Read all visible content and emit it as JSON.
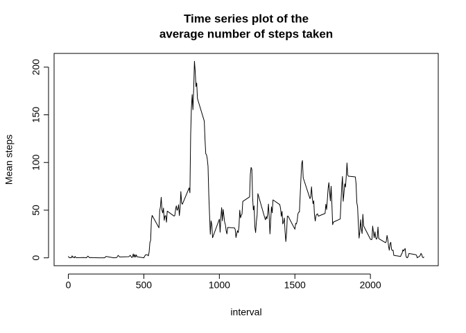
{
  "chart_data": {
    "type": "line",
    "title": [
      "Time series plot of the",
      "average number of steps taken"
    ],
    "x_label": "interval",
    "y_label": "Mean steps",
    "color": "#000000",
    "x": [
      0,
      5,
      10,
      15,
      20,
      25,
      30,
      35,
      40,
      45,
      50,
      55,
      100,
      110,
      120,
      125,
      130,
      140,
      150,
      200,
      220,
      240,
      250,
      300,
      320,
      330,
      340,
      400,
      410,
      420,
      425,
      430,
      435,
      440,
      445,
      450,
      455,
      500,
      510,
      520,
      525,
      530,
      535,
      540,
      545,
      550,
      555,
      600,
      605,
      610,
      615,
      620,
      625,
      630,
      635,
      640,
      645,
      650,
      655,
      700,
      705,
      710,
      715,
      720,
      725,
      730,
      735,
      740,
      745,
      750,
      755,
      800,
      805,
      810,
      815,
      820,
      825,
      830,
      835,
      840,
      845,
      850,
      855,
      900,
      905,
      910,
      915,
      920,
      925,
      930,
      935,
      940,
      945,
      950,
      955,
      1000,
      1005,
      1010,
      1015,
      1020,
      1025,
      1030,
      1035,
      1040,
      1045,
      1050,
      1055,
      1100,
      1105,
      1110,
      1115,
      1120,
      1125,
      1130,
      1135,
      1140,
      1145,
      1150,
      1155,
      1200,
      1205,
      1210,
      1215,
      1220,
      1225,
      1230,
      1235,
      1240,
      1245,
      1250,
      1255,
      1300,
      1305,
      1310,
      1315,
      1320,
      1325,
      1330,
      1335,
      1340,
      1345,
      1350,
      1355,
      1400,
      1405,
      1410,
      1415,
      1420,
      1425,
      1430,
      1435,
      1440,
      1445,
      1450,
      1455,
      1500,
      1505,
      1510,
      1515,
      1520,
      1525,
      1530,
      1535,
      1540,
      1545,
      1550,
      1555,
      1600,
      1605,
      1610,
      1615,
      1620,
      1625,
      1630,
      1635,
      1640,
      1645,
      1650,
      1655,
      1700,
      1705,
      1710,
      1715,
      1720,
      1725,
      1730,
      1735,
      1740,
      1745,
      1750,
      1755,
      1800,
      1805,
      1810,
      1815,
      1820,
      1825,
      1830,
      1835,
      1840,
      1845,
      1850,
      1855,
      1900,
      1905,
      1910,
      1915,
      1920,
      1925,
      1930,
      1935,
      1940,
      1945,
      1950,
      1955,
      2000,
      2005,
      2010,
      2015,
      2020,
      2025,
      2030,
      2035,
      2040,
      2045,
      2050,
      2055,
      2100,
      2105,
      2110,
      2115,
      2120,
      2125,
      2130,
      2135,
      2140,
      2145,
      2150,
      2155,
      2200,
      2205,
      2210,
      2215,
      2220,
      2225,
      2230,
      2235,
      2240,
      2245,
      2250,
      2255,
      2300,
      2305,
      2310,
      2315,
      2320,
      2325,
      2330,
      2335,
      2340,
      2345,
      2350,
      2355
    ],
    "values": [
      1.7,
      0.3,
      0.1,
      0.2,
      0.1,
      2.1,
      0.5,
      0.9,
      0,
      1.5,
      0.3,
      0.1,
      0.3,
      0.2,
      0,
      1.1,
      1.8,
      0.2,
      0.3,
      0,
      0,
      0,
      1.5,
      0,
      0.2,
      2.6,
      0.9,
      1.2,
      2.6,
      0.3,
      0.9,
      4.1,
      0.7,
      3.5,
      0.8,
      3.1,
      1.1,
      0,
      3,
      3.3,
      3,
      2.1,
      6.1,
      16,
      18.3,
      39.5,
      44.5,
      31.5,
      49.3,
      53.8,
      63.5,
      50,
      47.1,
      52.2,
      39.3,
      44,
      44.2,
      37.4,
      49,
      43.8,
      44.4,
      50.5,
      54.5,
      49.9,
      51,
      55.7,
      44.3,
      52.3,
      69.5,
      57.8,
      56.2,
      73.4,
      68.2,
      129.4,
      157.5,
      171.2,
      155.4,
      177.3,
      206.2,
      195.9,
      179.6,
      183.4,
      167,
      143.5,
      124,
      109.1,
      108.1,
      103.7,
      95.9,
      66.2,
      45.2,
      24.8,
      38.8,
      35,
      21.1,
      40.6,
      26.9,
      42.4,
      52.7,
      38.9,
      50.8,
      44.3,
      37.4,
      34.7,
      28.3,
      25.1,
      31.9,
      31.4,
      29.7,
      21.3,
      25.5,
      28.4,
      26.5,
      33.4,
      50,
      42,
      44.6,
      46,
      59.2,
      63.9,
      87.7,
      94.8,
      92.8,
      63.4,
      50.2,
      54.5,
      32.4,
      26.5,
      37.7,
      45.1,
      67.3,
      42.3,
      39.9,
      43.3,
      41,
      46.2,
      56.4,
      42.8,
      25.1,
      40,
      53.5,
      47.3,
      60.8,
      55.8,
      52,
      43.6,
      48.7,
      35.5,
      37.5,
      41.8,
      27.5,
      17.1,
      26.1,
      43.6,
      43.8,
      30,
      36.1,
      35.5,
      38.8,
      46,
      47.8,
      48.1,
      65.3,
      82.9,
      98.7,
      102.1,
      84,
      62.1,
      64.1,
      74.5,
      63.2,
      56.9,
      59.8,
      43.9,
      38.6,
      44.7,
      45.5,
      46.2,
      43.7,
      46.6,
      56.3,
      50.7,
      61.2,
      72.7,
      78.9,
      68.9,
      59.7,
      75.1,
      56.5,
      34.8,
      37.5,
      40.7,
      58,
      74.7,
      85.3,
      59.3,
      67.8,
      77.7,
      74.2,
      85.3,
      99.5,
      86.6,
      85.6,
      84.9,
      77.8,
      58,
      53.4,
      36.3,
      20.7,
      27.4,
      40,
      30.2,
      25.5,
      45.7,
      33.5,
      19.6,
      19,
      19.3,
      33.3,
      26.8,
      21.2,
      27.3,
      21.3,
      19.5,
      21.3,
      32.3,
      20.2,
      15.9,
      17.2,
      23.5,
      19.2,
      12.5,
      8,
      14.7,
      16.3,
      8.7,
      7.8,
      8.1,
      2.6,
      1.5,
      3.7,
      4.8,
      8.5,
      7.1,
      8.7,
      9.8,
      2.2,
      0.3,
      0.1,
      1.6,
      4.6,
      3.3,
      2.8,
      0,
      0.8,
      1,
      1.6,
      2.6,
      4.7,
      3.3,
      0.6,
      0.2,
      1.1
    ],
    "xlim": [
      -94.2,
      2449.2
    ],
    "ylim": [
      -8.25,
      214.4
    ],
    "xticks": [
      0,
      500,
      1000,
      1500,
      2000
    ],
    "yticks": [
      0,
      50,
      100,
      150,
      200
    ]
  }
}
